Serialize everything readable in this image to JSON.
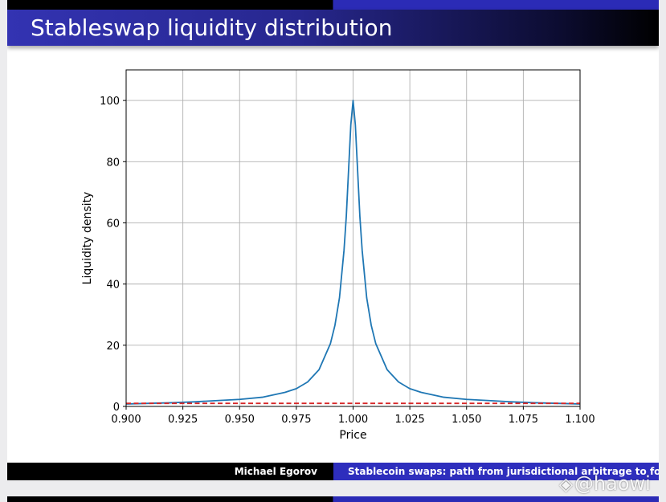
{
  "slide": {
    "title": "Stableswap liquidity distribution",
    "footer_author": "Michael Egorov",
    "footer_talk": "Stablecoin swaps: path from jurisdictional arbitrage to foreign e"
  },
  "watermark": {
    "text": "@haowi",
    "icon": "diamond-logo-icon"
  },
  "chart_data": {
    "type": "line",
    "title": "",
    "xlabel": "Price",
    "ylabel": "Liquidity density",
    "xlim": [
      0.9,
      1.1
    ],
    "ylim": [
      0,
      110
    ],
    "xticks": [
      0.9,
      0.925,
      0.95,
      0.975,
      1.0,
      1.025,
      1.05,
      1.075,
      1.1
    ],
    "xtick_labels": [
      "0.900",
      "0.925",
      "0.950",
      "0.975",
      "1.000",
      "1.025",
      "1.050",
      "1.075",
      "1.100"
    ],
    "yticks": [
      0,
      20,
      40,
      60,
      80,
      100
    ],
    "ytick_labels": [
      "0",
      "20",
      "40",
      "60",
      "80",
      "100"
    ],
    "grid": true,
    "series": [
      {
        "style": "solid",
        "color": "#1f77b4",
        "x": [
          0.9,
          0.91,
          0.92,
          0.93,
          0.94,
          0.95,
          0.96,
          0.97,
          0.975,
          0.98,
          0.985,
          0.99,
          0.992,
          0.994,
          0.996,
          0.997,
          0.998,
          0.999,
          1.0,
          1.001,
          1.002,
          1.003,
          1.004,
          1.006,
          1.008,
          1.01,
          1.015,
          1.02,
          1.025,
          1.03,
          1.04,
          1.05,
          1.06,
          1.07,
          1.08,
          1.09,
          1.1
        ],
        "y": [
          0.8,
          1.0,
          1.2,
          1.5,
          1.9,
          2.3,
          3.0,
          4.6,
          5.8,
          8.0,
          12.0,
          20.5,
          26.5,
          35.5,
          51.0,
          62.0,
          77.0,
          92.0,
          100,
          92.0,
          77.0,
          62.0,
          51.0,
          35.5,
          26.5,
          20.5,
          12.0,
          8.0,
          5.8,
          4.6,
          3.0,
          2.3,
          1.9,
          1.5,
          1.2,
          1.0,
          0.8
        ]
      },
      {
        "style": "dashed",
        "color": "#d62728",
        "x": [
          0.9,
          1.1
        ],
        "y": [
          1.0,
          1.0
        ]
      }
    ]
  }
}
